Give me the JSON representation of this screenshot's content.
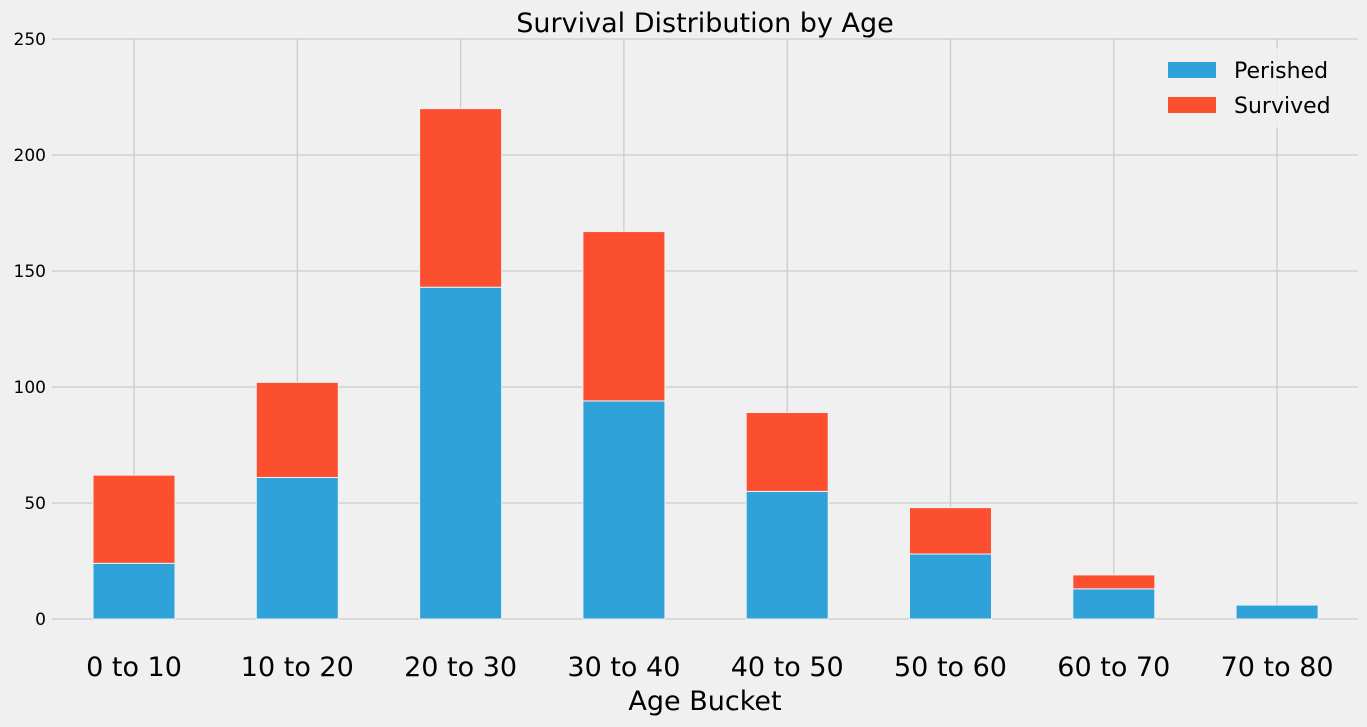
{
  "chart_data": {
    "type": "bar",
    "stacked": true,
    "title": "Survival Distribution by Age",
    "xlabel": "Age Bucket",
    "ylabel": "",
    "ylim": [
      0,
      250
    ],
    "yticks": [
      0,
      50,
      100,
      150,
      200,
      250
    ],
    "grid": true,
    "legend_position": "top-right",
    "categories": [
      "0 to 10",
      "10 to 20",
      "20 to 30",
      "30 to 40",
      "40 to 50",
      "50 to 60",
      "60 to 70",
      "70 to 80"
    ],
    "series": [
      {
        "name": "Perished",
        "color": "#30a2da",
        "values": [
          24,
          61,
          143,
          94,
          55,
          28,
          13,
          6
        ]
      },
      {
        "name": "Survived",
        "color": "#fc4f30",
        "values": [
          38,
          41,
          77,
          73,
          34,
          20,
          6,
          0
        ]
      }
    ]
  }
}
